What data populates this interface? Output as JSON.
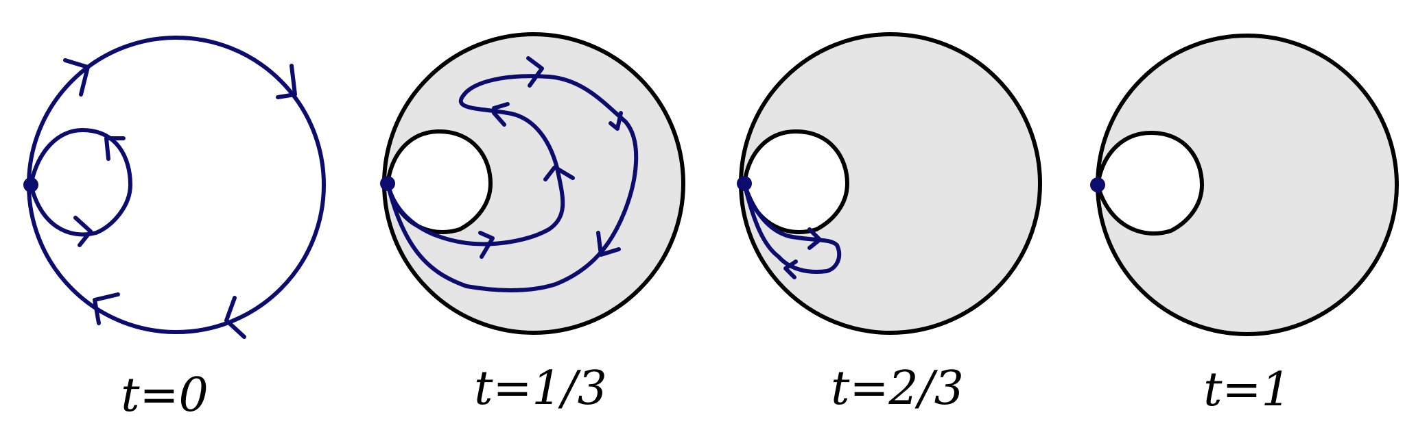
{
  "panels": [
    {
      "label": "t=0",
      "filled": false
    },
    {
      "label": "t=1/3",
      "filled": true
    },
    {
      "label": "t=2/3",
      "filled": true
    },
    {
      "label": "t=1",
      "filled": true
    }
  ],
  "colors": {
    "loop": "#0c0c6e",
    "region_fill": "#e5e5e5",
    "outline": "#000000"
  }
}
